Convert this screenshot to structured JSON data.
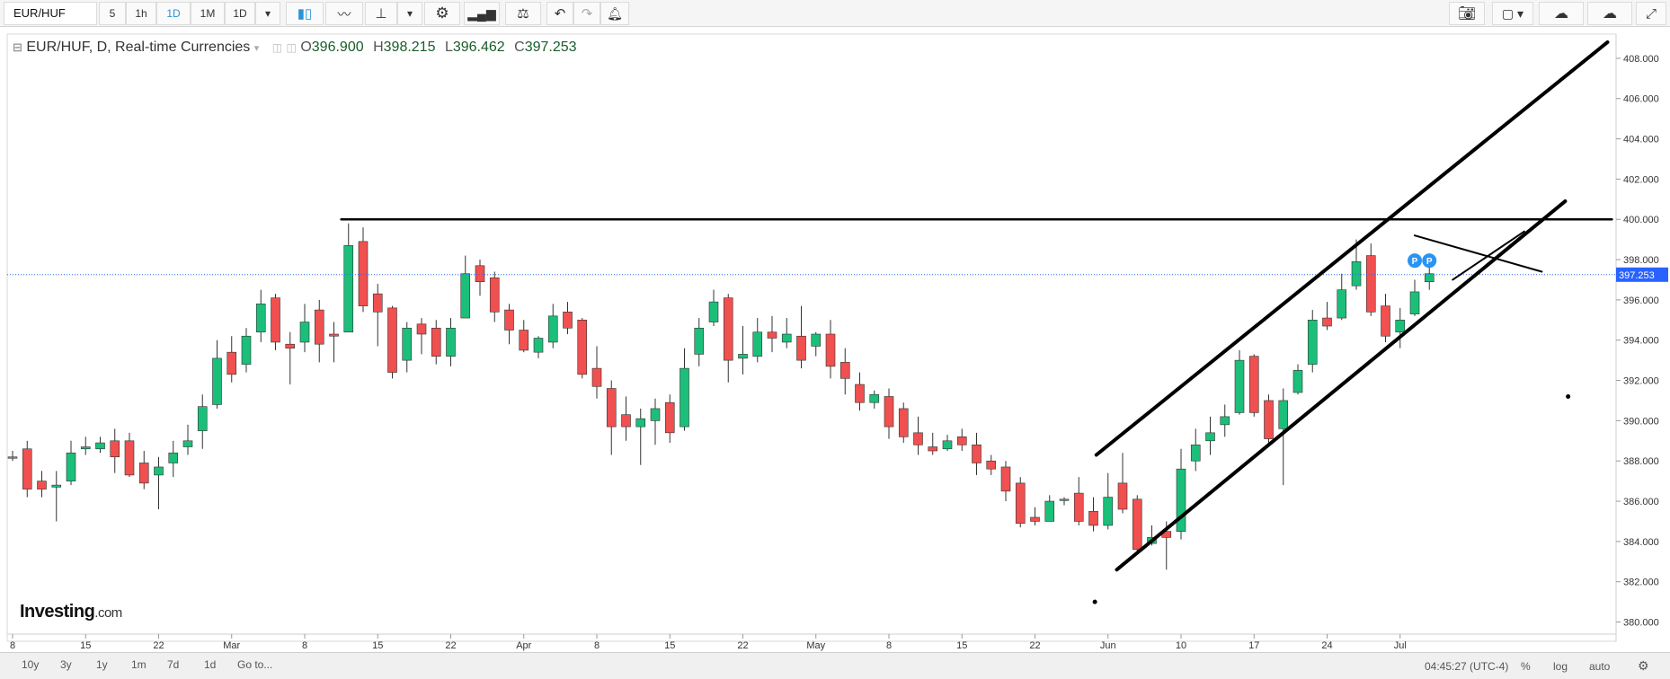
{
  "toolbar": {
    "symbol": "EUR/HUF",
    "intervals": [
      "5",
      "1h",
      "1D",
      "1M",
      "1D"
    ],
    "active_interval_index": 2
  },
  "legend": {
    "title": "EUR/HUF, D, Real-time Currencies",
    "open_label": "O",
    "open": "396.900",
    "high_label": "H",
    "high": "398.215",
    "low_label": "L",
    "low": "396.462",
    "close_label": "C",
    "close": "397.253"
  },
  "branding": {
    "logo_main": "Investing",
    "logo_domain": ".com"
  },
  "bottom": {
    "ranges": [
      "10y",
      "3y",
      "1y",
      "1m",
      "7d",
      "1d",
      "Go to..."
    ],
    "clock": "04:45:27 (UTC-4)",
    "percent": "%",
    "log": "log",
    "auto": "auto"
  },
  "colors": {
    "up": "#1bbf7a",
    "down": "#f0504f",
    "price_line": "#2962ff",
    "price_tag": "#2962ff",
    "drawing": "#000000"
  },
  "chart_data": {
    "type": "candlestick",
    "ylim": [
      379.4,
      409.2
    ],
    "yticks": [
      "380.000",
      "382.000",
      "384.000",
      "386.000",
      "388.000",
      "390.000",
      "392.000",
      "394.000",
      "396.000",
      "398.000",
      "400.000",
      "402.000",
      "404.000",
      "406.000",
      "408.000"
    ],
    "xticks": [
      {
        "label": "8",
        "index": 0
      },
      {
        "label": "15",
        "index": 5
      },
      {
        "label": "22",
        "index": 10
      },
      {
        "label": "Mar",
        "index": 15
      },
      {
        "label": "8",
        "index": 20
      },
      {
        "label": "15",
        "index": 25
      },
      {
        "label": "22",
        "index": 30
      },
      {
        "label": "Apr",
        "index": 35
      },
      {
        "label": "8",
        "index": 40
      },
      {
        "label": "15",
        "index": 45
      },
      {
        "label": "22",
        "index": 50
      },
      {
        "label": "May",
        "index": 55
      },
      {
        "label": "8",
        "index": 60
      },
      {
        "label": "15",
        "index": 65
      },
      {
        "label": "22",
        "index": 70
      },
      {
        "label": "Jun",
        "index": 75
      },
      {
        "label": "10",
        "index": 80
      },
      {
        "label": "17",
        "index": 85
      },
      {
        "label": "24",
        "index": 90
      },
      {
        "label": "Jul",
        "index": 95
      }
    ],
    "candles": [
      [
        388.2,
        388.2,
        388.5,
        388.0
      ],
      [
        388.6,
        386.6,
        389.0,
        386.2
      ],
      [
        387.0,
        386.6,
        387.5,
        386.2
      ],
      [
        386.7,
        386.8,
        387.5,
        385.0
      ],
      [
        387.0,
        388.4,
        389.0,
        386.8
      ],
      [
        388.6,
        388.7,
        389.2,
        388.3
      ],
      [
        388.6,
        388.9,
        389.2,
        388.4
      ],
      [
        389.0,
        388.2,
        389.6,
        387.4
      ],
      [
        389.0,
        387.3,
        389.4,
        387.2
      ],
      [
        387.9,
        386.9,
        388.5,
        386.6
      ],
      [
        387.3,
        387.7,
        388.2,
        385.6
      ],
      [
        387.9,
        388.4,
        389.0,
        387.2
      ],
      [
        388.7,
        389.0,
        389.8,
        388.3
      ],
      [
        389.5,
        390.7,
        391.3,
        388.6
      ],
      [
        390.8,
        393.1,
        394.0,
        390.6
      ],
      [
        393.4,
        392.3,
        394.2,
        391.9
      ],
      [
        392.8,
        394.2,
        394.6,
        392.4
      ],
      [
        394.4,
        395.8,
        396.5,
        393.9
      ],
      [
        396.1,
        393.9,
        396.3,
        393.5
      ],
      [
        393.8,
        393.6,
        394.4,
        391.8
      ],
      [
        393.9,
        394.9,
        395.8,
        393.4
      ],
      [
        395.5,
        393.8,
        396.0,
        392.9
      ],
      [
        394.3,
        394.2,
        394.9,
        392.9
      ],
      [
        394.4,
        398.7,
        399.8,
        394.4
      ],
      [
        398.9,
        395.7,
        399.6,
        395.4
      ],
      [
        396.3,
        395.4,
        396.8,
        393.7
      ],
      [
        395.6,
        392.4,
        395.7,
        392.1
      ],
      [
        393.0,
        394.6,
        394.9,
        392.4
      ],
      [
        394.8,
        394.3,
        395.1,
        393.3
      ],
      [
        394.6,
        393.2,
        395.0,
        392.8
      ],
      [
        393.2,
        394.6,
        395.1,
        392.7
      ],
      [
        395.1,
        397.3,
        398.2,
        395.1
      ],
      [
        397.7,
        396.9,
        398.0,
        396.2
      ],
      [
        397.1,
        395.4,
        397.4,
        394.9
      ],
      [
        395.5,
        394.5,
        395.8,
        393.8
      ],
      [
        394.5,
        393.5,
        395.0,
        393.4
      ],
      [
        393.4,
        394.1,
        394.2,
        393.1
      ],
      [
        393.9,
        395.2,
        395.8,
        393.6
      ],
      [
        395.4,
        394.6,
        395.9,
        394.3
      ],
      [
        395.0,
        392.3,
        395.1,
        392.1
      ],
      [
        392.6,
        391.7,
        393.7,
        391.1
      ],
      [
        391.6,
        389.7,
        392.0,
        388.3
      ],
      [
        390.3,
        389.7,
        391.2,
        389.0
      ],
      [
        389.7,
        390.1,
        390.6,
        387.8
      ],
      [
        390.0,
        390.6,
        391.1,
        388.8
      ],
      [
        390.9,
        389.4,
        391.3,
        388.9
      ],
      [
        389.7,
        392.6,
        393.6,
        389.5
      ],
      [
        393.3,
        394.6,
        395.1,
        392.7
      ],
      [
        394.9,
        395.9,
        396.5,
        394.7
      ],
      [
        396.1,
        393.0,
        396.3,
        391.9
      ],
      [
        393.1,
        393.3,
        394.7,
        392.3
      ],
      [
        393.2,
        394.4,
        395.1,
        392.9
      ],
      [
        394.4,
        394.1,
        395.2,
        393.4
      ],
      [
        393.9,
        394.3,
        395.1,
        393.6
      ],
      [
        394.2,
        393.0,
        395.7,
        392.6
      ],
      [
        393.7,
        394.3,
        394.4,
        393.2
      ],
      [
        394.3,
        392.7,
        395.0,
        392.1
      ],
      [
        392.9,
        392.1,
        393.6,
        391.3
      ],
      [
        391.8,
        390.9,
        392.4,
        390.5
      ],
      [
        390.9,
        391.3,
        391.5,
        390.6
      ],
      [
        391.2,
        389.7,
        391.6,
        389.1
      ],
      [
        390.6,
        389.2,
        390.9,
        388.9
      ],
      [
        389.4,
        388.8,
        390.2,
        388.3
      ],
      [
        388.7,
        388.5,
        389.4,
        388.3
      ],
      [
        388.6,
        389.0,
        389.3,
        388.5
      ],
      [
        389.2,
        388.8,
        389.6,
        388.5
      ],
      [
        388.8,
        387.9,
        389.4,
        387.3
      ],
      [
        388.0,
        387.6,
        388.3,
        387.3
      ],
      [
        387.7,
        386.5,
        388.0,
        386.0
      ],
      [
        386.9,
        384.9,
        387.2,
        384.7
      ],
      [
        385.2,
        385.0,
        385.7,
        384.8
      ],
      [
        385.0,
        386.0,
        386.3,
        385.0
      ],
      [
        386.1,
        386.1,
        386.2,
        385.8
      ],
      [
        386.4,
        385.0,
        387.2,
        384.8
      ],
      [
        385.5,
        384.8,
        386.2,
        384.5
      ],
      [
        384.8,
        386.2,
        387.4,
        384.6
      ],
      [
        386.9,
        385.6,
        388.4,
        385.4
      ],
      [
        386.1,
        383.6,
        386.3,
        383.5
      ],
      [
        383.9,
        384.2,
        384.8,
        383.8
      ],
      [
        384.5,
        384.2,
        385.0,
        382.6
      ],
      [
        384.5,
        387.6,
        388.6,
        384.1
      ],
      [
        388.0,
        388.8,
        389.6,
        387.5
      ],
      [
        389.0,
        389.4,
        390.2,
        388.3
      ],
      [
        389.8,
        390.2,
        390.8,
        389.2
      ],
      [
        390.4,
        393.0,
        393.5,
        390.3
      ],
      [
        393.2,
        390.4,
        393.3,
        390.2
      ],
      [
        391.0,
        389.1,
        391.3,
        388.9
      ],
      [
        389.6,
        391.0,
        391.6,
        386.8
      ],
      [
        391.4,
        392.5,
        392.8,
        391.3
      ],
      [
        392.8,
        395.0,
        395.5,
        392.4
      ],
      [
        395.1,
        394.7,
        395.9,
        394.5
      ],
      [
        395.1,
        396.5,
        397.3,
        395.0
      ],
      [
        396.7,
        397.9,
        399.0,
        396.5
      ],
      [
        398.2,
        395.4,
        398.8,
        395.2
      ],
      [
        395.7,
        394.2,
        396.3,
        393.9
      ],
      [
        394.4,
        395.0,
        395.6,
        393.6
      ],
      [
        395.3,
        396.4,
        397.0,
        395.2
      ],
      [
        396.9,
        397.3,
        398.2,
        396.5
      ]
    ],
    "current_price": 397.253,
    "current_price_label": "397.253",
    "markers": [
      {
        "index": 96,
        "label": "P"
      },
      {
        "index": 97,
        "label": "P"
      }
    ],
    "trendlines": [
      {
        "from": [
          22.5,
          400.0
        ],
        "to": [
          109.5,
          400.0
        ]
      },
      {
        "from": [
          74.2,
          388.3
        ],
        "to": [
          109.2,
          408.8
        ]
      },
      {
        "from": [
          75.6,
          382.6
        ],
        "to": [
          106.3,
          400.9
        ]
      },
      {
        "from": [
          96.0,
          399.2
        ],
        "to": [
          104.7,
          397.4
        ]
      },
      {
        "from": [
          98.6,
          397.0
        ],
        "to": [
          103.5,
          399.4
        ]
      }
    ],
    "dots": [
      {
        "index": 74.1,
        "value": 381.0
      },
      {
        "index": 106.5,
        "value": 391.2
      }
    ]
  }
}
